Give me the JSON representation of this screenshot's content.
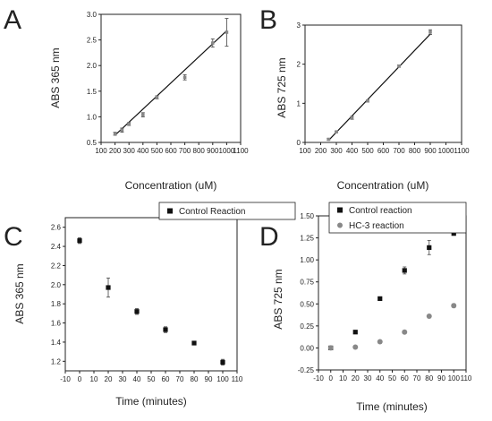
{
  "chart_data": [
    {
      "panel": "A",
      "type": "scatter",
      "xlabel": "Concentration (uM)",
      "ylabel": "ABS 365 nm",
      "xlim": [
        100,
        1100
      ],
      "ylim": [
        0.5,
        3.0
      ],
      "xticks": [
        "100",
        "200",
        "300",
        "400",
        "500",
        "600",
        "700",
        "800",
        "900",
        "1000",
        "1100"
      ],
      "yticks": [
        "0.5",
        "1.0",
        "1.5",
        "2.0",
        "2.5",
        "3.0"
      ],
      "series": [
        {
          "color": "#888888",
          "marker": "square",
          "fit": true,
          "x": [
            200,
            250,
            300,
            400,
            500,
            700,
            900,
            1000
          ],
          "y": [
            0.67,
            0.74,
            0.86,
            1.04,
            1.38,
            1.77,
            2.44,
            2.65
          ],
          "err": [
            0.03,
            0.04,
            0.03,
            0.04,
            0.03,
            0.05,
            0.08,
            0.27
          ]
        }
      ],
      "fit_line": {
        "x": [
          200,
          1000
        ],
        "y": [
          0.64,
          2.68
        ]
      }
    },
    {
      "panel": "B",
      "type": "scatter",
      "xlabel": "Concentration (uM)",
      "ylabel": "ABS 725 nm",
      "xlim": [
        100,
        1100
      ],
      "ylim": [
        0,
        3
      ],
      "xticks": [
        "100",
        "200",
        "300",
        "400",
        "500",
        "600",
        "700",
        "800",
        "900",
        "1000",
        "1100"
      ],
      "yticks": [
        "0",
        "1",
        "2",
        "3"
      ],
      "series": [
        {
          "color": "#888888",
          "marker": "square",
          "fit": true,
          "x": [
            250,
            300,
            400,
            500,
            700,
            900
          ],
          "y": [
            0.08,
            0.27,
            0.63,
            1.06,
            1.95,
            2.82
          ],
          "err": [
            0.02,
            0.02,
            0.04,
            0.03,
            0.03,
            0.06
          ]
        }
      ],
      "fit_line": {
        "x": [
          250,
          900
        ],
        "y": [
          0.05,
          2.77
        ]
      }
    },
    {
      "panel": "C",
      "type": "scatter",
      "xlabel": "Time (minutes)",
      "ylabel": "ABS 365 nm",
      "xlim": [
        -10,
        110
      ],
      "ylim": [
        1.1,
        2.7
      ],
      "xticks": [
        "-10",
        "0",
        "10",
        "20",
        "30",
        "40",
        "50",
        "60",
        "70",
        "80",
        "90",
        "100",
        "110"
      ],
      "yticks": [
        "1.2",
        "1.4",
        "1.6",
        "1.8",
        "2.0",
        "2.2",
        "2.4",
        "2.6"
      ],
      "legend": {
        "placement": "top-right",
        "entries": [
          "Control Reaction"
        ]
      },
      "series": [
        {
          "name": "Control Reaction",
          "color": "#111111",
          "marker": "square",
          "x": [
            0,
            20,
            40,
            60,
            80,
            100
          ],
          "y": [
            2.46,
            1.97,
            1.72,
            1.53,
            1.39,
            1.19
          ],
          "err": [
            0.03,
            0.1,
            0.03,
            0.03,
            0.0,
            0.03
          ]
        }
      ]
    },
    {
      "panel": "D",
      "type": "scatter",
      "xlabel": "Time (minutes)",
      "ylabel": "ABS 725 nm",
      "xlim": [
        -10,
        110
      ],
      "ylim": [
        -0.25,
        1.5
      ],
      "xticks": [
        "-10",
        "0",
        "10",
        "20",
        "30",
        "40",
        "50",
        "60",
        "70",
        "80",
        "90",
        "100",
        "110"
      ],
      "yticks": [
        "-0.25",
        "0.00",
        "0.25",
        "0.50",
        "0.75",
        "1.00",
        "1.25",
        "1.50"
      ],
      "legend": {
        "placement": "top-right",
        "entries": [
          "Control reaction",
          "HC-3 reaction"
        ]
      },
      "series": [
        {
          "name": "Control reaction",
          "color": "#111111",
          "marker": "square",
          "x": [
            0,
            20,
            40,
            60,
            80,
            100
          ],
          "y": [
            0.0,
            0.18,
            0.56,
            0.88,
            1.14,
            1.3
          ],
          "err": [
            0.0,
            0.0,
            0.0,
            0.04,
            0.08,
            0.0
          ]
        },
        {
          "name": "HC-3 reaction",
          "color": "#888888",
          "marker": "circle",
          "x": [
            0,
            20,
            40,
            60,
            80,
            100
          ],
          "y": [
            0.0,
            0.01,
            0.07,
            0.18,
            0.36,
            0.48
          ],
          "err": [
            0.02,
            0.0,
            0.0,
            0.0,
            0.0,
            0.02
          ]
        }
      ]
    }
  ]
}
